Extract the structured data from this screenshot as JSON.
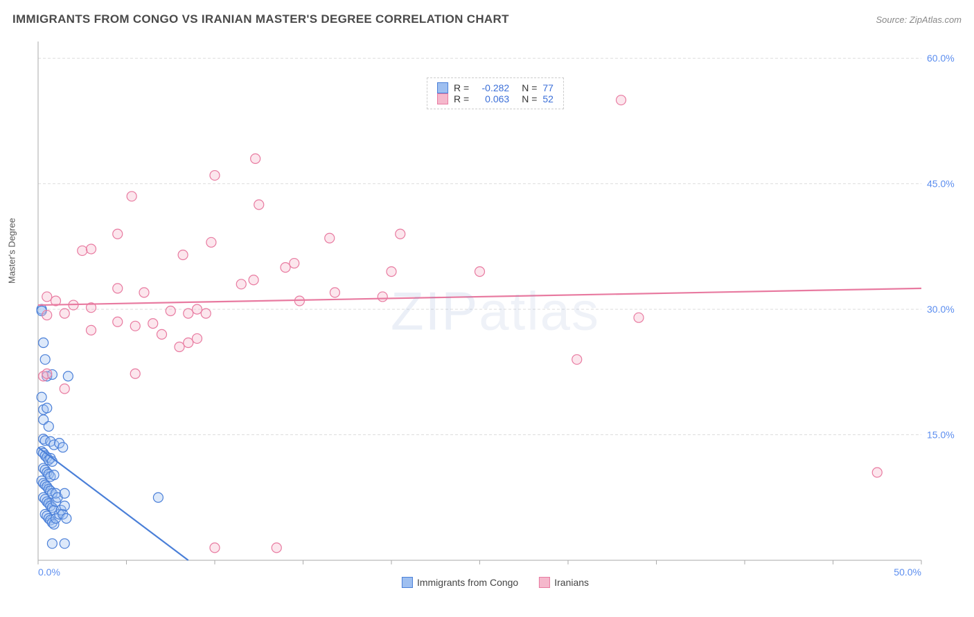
{
  "header": {
    "title": "IMMIGRANTS FROM CONGO VS IRANIAN MASTER'S DEGREE CORRELATION CHART",
    "source": "Source: ZipAtlas.com"
  },
  "watermark": {
    "part1": "ZIP",
    "part2": "atlas"
  },
  "chart": {
    "type": "scatter",
    "y_axis_label": "Master's Degree",
    "background_color": "#ffffff",
    "grid_color": "#dddddd",
    "axis_line_color": "#aaaaaa",
    "xlim": [
      0,
      50
    ],
    "ylim": [
      0,
      62
    ],
    "x_ticks": [
      0,
      5,
      10,
      15,
      20,
      25,
      30,
      35,
      40,
      45,
      50
    ],
    "x_tick_labels": [
      "0.0%",
      "",
      "",
      "",
      "",
      "",
      "",
      "",
      "",
      "",
      "50.0%"
    ],
    "y_ticks": [
      15,
      30,
      45,
      60
    ],
    "y_tick_labels": [
      "15.0%",
      "30.0%",
      "45.0%",
      "60.0%"
    ],
    "tick_label_color": "#5b8def",
    "tick_fontsize": 14,
    "marker_radius": 7,
    "marker_stroke_width": 1.2,
    "marker_fill_opacity": 0.35,
    "trendline_width": 2.2,
    "series": [
      {
        "name": "Immigrants from Congo",
        "color": "#4a7fd8",
        "fill": "#9ebff0",
        "R": "-0.282",
        "N": "77",
        "trendline": {
          "x1": 0,
          "y1": 13.5,
          "x2": 8.5,
          "y2": 0
        },
        "points": [
          [
            0.2,
            30.0
          ],
          [
            0.2,
            29.8
          ],
          [
            0.3,
            26.0
          ],
          [
            0.4,
            24.0
          ],
          [
            0.5,
            22.0
          ],
          [
            0.8,
            22.2
          ],
          [
            1.7,
            22.0
          ],
          [
            0.2,
            19.5
          ],
          [
            0.3,
            18.0
          ],
          [
            0.5,
            18.2
          ],
          [
            0.3,
            16.8
          ],
          [
            0.6,
            16.0
          ],
          [
            0.3,
            14.5
          ],
          [
            0.4,
            14.3
          ],
          [
            0.7,
            14.2
          ],
          [
            0.9,
            13.8
          ],
          [
            1.2,
            14.0
          ],
          [
            1.4,
            13.5
          ],
          [
            0.2,
            13.0
          ],
          [
            0.3,
            12.8
          ],
          [
            0.4,
            12.5
          ],
          [
            0.5,
            12.3
          ],
          [
            0.6,
            12.0
          ],
          [
            0.7,
            12.2
          ],
          [
            0.8,
            11.8
          ],
          [
            0.3,
            11.0
          ],
          [
            0.4,
            10.8
          ],
          [
            0.5,
            10.5
          ],
          [
            0.6,
            10.3
          ],
          [
            0.7,
            10.0
          ],
          [
            0.9,
            10.2
          ],
          [
            0.2,
            9.5
          ],
          [
            0.3,
            9.2
          ],
          [
            0.4,
            9.0
          ],
          [
            0.5,
            8.8
          ],
          [
            0.6,
            8.5
          ],
          [
            0.7,
            8.3
          ],
          [
            0.8,
            8.0
          ],
          [
            0.3,
            7.5
          ],
          [
            0.4,
            7.3
          ],
          [
            0.5,
            7.0
          ],
          [
            0.6,
            6.8
          ],
          [
            0.7,
            6.5
          ],
          [
            0.8,
            6.3
          ],
          [
            0.9,
            6.0
          ],
          [
            1.0,
            7.0
          ],
          [
            1.0,
            8.0
          ],
          [
            1.1,
            7.5
          ],
          [
            1.5,
            8.0
          ],
          [
            0.4,
            5.5
          ],
          [
            0.5,
            5.3
          ],
          [
            0.6,
            5.0
          ],
          [
            0.7,
            4.8
          ],
          [
            0.8,
            4.5
          ],
          [
            0.9,
            4.3
          ],
          [
            1.0,
            5.0
          ],
          [
            1.2,
            5.5
          ],
          [
            1.3,
            6.0
          ],
          [
            1.4,
            5.5
          ],
          [
            1.6,
            5.0
          ],
          [
            1.5,
            6.5
          ],
          [
            6.8,
            7.5
          ],
          [
            0.8,
            2.0
          ],
          [
            1.5,
            2.0
          ]
        ]
      },
      {
        "name": "Iranians",
        "color": "#e87aa0",
        "fill": "#f5b8cc",
        "R": "0.063",
        "N": "52",
        "trendline": {
          "x1": 0,
          "y1": 30.5,
          "x2": 50,
          "y2": 32.5
        },
        "points": [
          [
            33.0,
            55.0
          ],
          [
            12.3,
            48.0
          ],
          [
            10.0,
            46.0
          ],
          [
            12.5,
            42.5
          ],
          [
            5.3,
            43.5
          ],
          [
            4.5,
            39.0
          ],
          [
            8.2,
            36.5
          ],
          [
            20.5,
            39.0
          ],
          [
            16.5,
            38.5
          ],
          [
            2.5,
            37.0
          ],
          [
            3.0,
            37.2
          ],
          [
            9.8,
            38.0
          ],
          [
            12.2,
            33.5
          ],
          [
            14.0,
            35.0
          ],
          [
            16.8,
            32.0
          ],
          [
            20.0,
            34.5
          ],
          [
            11.5,
            33.0
          ],
          [
            14.5,
            35.5
          ],
          [
            14.8,
            31.0
          ],
          [
            25.0,
            34.5
          ],
          [
            0.5,
            31.5
          ],
          [
            1.0,
            31.0
          ],
          [
            2.0,
            30.5
          ],
          [
            3.0,
            30.2
          ],
          [
            1.5,
            29.5
          ],
          [
            4.5,
            32.5
          ],
          [
            6.0,
            32.0
          ],
          [
            7.5,
            29.8
          ],
          [
            8.5,
            29.5
          ],
          [
            9.0,
            30.0
          ],
          [
            9.5,
            29.5
          ],
          [
            19.5,
            31.5
          ],
          [
            34.0,
            29.0
          ],
          [
            4.5,
            28.5
          ],
          [
            5.5,
            28.0
          ],
          [
            6.5,
            28.3
          ],
          [
            7.0,
            27.0
          ],
          [
            3.0,
            27.5
          ],
          [
            8.0,
            25.5
          ],
          [
            8.5,
            26.0
          ],
          [
            9.0,
            26.5
          ],
          [
            0.3,
            22.0
          ],
          [
            0.5,
            22.3
          ],
          [
            5.5,
            22.3
          ],
          [
            1.5,
            20.5
          ],
          [
            0.5,
            29.3
          ],
          [
            30.5,
            24.0
          ],
          [
            47.5,
            10.5
          ],
          [
            10.0,
            1.5
          ],
          [
            13.5,
            1.5
          ]
        ]
      }
    ]
  },
  "x_legend": {
    "items": [
      {
        "label": "Immigrants from Congo",
        "fill": "#9ebff0",
        "stroke": "#4a7fd8"
      },
      {
        "label": "Iranians",
        "fill": "#f5b8cc",
        "stroke": "#e87aa0"
      }
    ]
  }
}
